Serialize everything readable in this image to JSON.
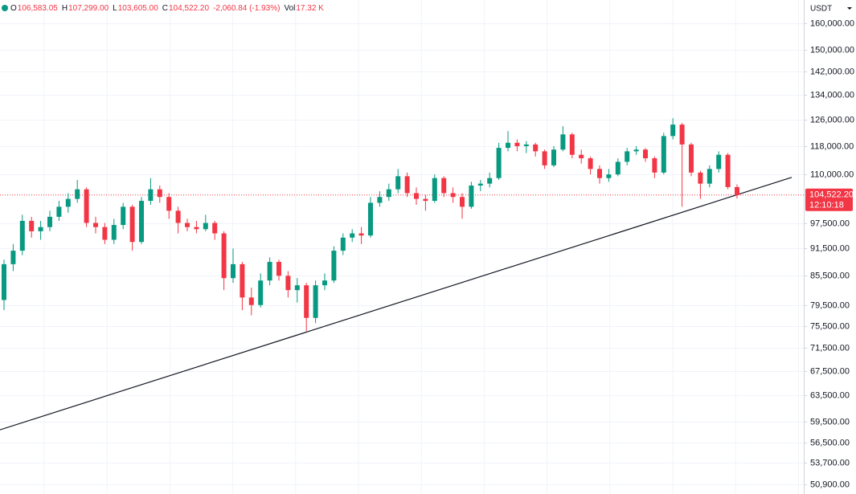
{
  "chart_data": {
    "type": "candlestick",
    "scale": "log",
    "grid": true,
    "currency": "USDT",
    "header": {
      "fields": [
        {
          "key": "O",
          "label": "106,583.05"
        },
        {
          "key": "H",
          "label": "107,299.00"
        },
        {
          "key": "L",
          "label": "103,605.00"
        },
        {
          "key": "C",
          "label": "104,522.20"
        }
      ],
      "change": "-2,060.84 (-1.93%)",
      "volume": {
        "key": "Vol",
        "label": "17.32 K"
      },
      "color": "#f23645",
      "dot_color": "#089981"
    },
    "up_color": "#089981",
    "down_color": "#f23645",
    "open": [
      80500,
      88000,
      91000,
      98000,
      95500,
      96500,
      99000,
      101500,
      103500,
      106000,
      97500,
      96500,
      93500,
      97000,
      101500,
      93000,
      103000,
      106000,
      104000,
      100500,
      97500,
      96500,
      96000,
      97500,
      95000,
      85000,
      88000,
      81000,
      79500,
      84500,
      88500,
      85500,
      82500,
      83500,
      77000,
      83500,
      84500,
      91000,
      94000,
      95000,
      94500,
      102500,
      104000,
      106000,
      109500,
      105000,
      103500,
      103000,
      109000,
      105000,
      104000,
      101500,
      107000,
      107500,
      109000,
      117500,
      119000,
      118000,
      118500,
      116500,
      112500,
      117000,
      121500,
      115500,
      114500,
      111500,
      109000,
      110000,
      113500,
      116500,
      117000,
      114500,
      110500,
      121000,
      124500,
      118500,
      110500,
      107500,
      111500,
      115500,
      106583.05
    ],
    "high": [
      89000,
      92500,
      99500,
      99000,
      98000,
      100500,
      103000,
      105000,
      108500,
      106500,
      99000,
      97500,
      98500,
      102500,
      102000,
      104000,
      109000,
      107000,
      105000,
      101500,
      98500,
      98000,
      99500,
      98000,
      95500,
      91500,
      88500,
      83000,
      86000,
      89500,
      89000,
      86500,
      85000,
      84000,
      84500,
      86000,
      92000,
      95000,
      96000,
      96500,
      104000,
      105500,
      107500,
      111500,
      110500,
      106500,
      104500,
      110000,
      109500,
      106500,
      105000,
      108000,
      108500,
      110500,
      119000,
      122500,
      120000,
      119500,
      119000,
      117000,
      118000,
      124000,
      122000,
      117000,
      115000,
      112500,
      111500,
      114500,
      117500,
      118000,
      117500,
      115000,
      122000,
      126500,
      125000,
      119000,
      111000,
      112500,
      116500,
      116000,
      107299
    ],
    "low": [
      78500,
      86500,
      90000,
      94000,
      93500,
      95500,
      98000,
      100000,
      102500,
      96500,
      95000,
      92500,
      92500,
      96000,
      91000,
      92500,
      102000,
      102500,
      98500,
      95000,
      95500,
      95000,
      95500,
      93500,
      82500,
      84000,
      78500,
      77500,
      79000,
      83500,
      84500,
      81000,
      80000,
      74500,
      76000,
      82500,
      84000,
      90000,
      93000,
      92500,
      94000,
      101500,
      103000,
      105000,
      104000,
      102000,
      100500,
      102500,
      104000,
      102500,
      98500,
      101000,
      105500,
      106500,
      108500,
      116500,
      116500,
      116000,
      115000,
      111500,
      112000,
      116500,
      114500,
      113000,
      110000,
      107500,
      108000,
      109500,
      112500,
      115500,
      113500,
      109000,
      110000,
      120000,
      101500,
      109500,
      103500,
      106500,
      110500,
      106000,
      103605
    ],
    "close": [
      88000,
      91000,
      98000,
      95500,
      96500,
      99000,
      101500,
      103500,
      106000,
      97500,
      96500,
      93500,
      97000,
      101500,
      93000,
      103000,
      106000,
      104000,
      100500,
      97500,
      96500,
      96000,
      97500,
      95000,
      85000,
      88000,
      81000,
      79500,
      84500,
      88500,
      85500,
      82500,
      83500,
      77000,
      83500,
      84500,
      91000,
      94000,
      95000,
      94500,
      102500,
      104000,
      106000,
      109500,
      105000,
      103500,
      103000,
      109000,
      105000,
      104000,
      101500,
      107000,
      107500,
      109000,
      117500,
      119000,
      118000,
      118500,
      116500,
      112500,
      117000,
      121500,
      115500,
      114500,
      111500,
      109000,
      110000,
      113500,
      116500,
      117000,
      114500,
      110500,
      121000,
      124500,
      118500,
      110500,
      107500,
      111500,
      115500,
      106583.05,
      104522.2
    ],
    "last_price_label": "104,522.20",
    "countdown": "12:10:18",
    "trendline": {
      "values": [
        58300,
        109200
      ],
      "color": "#131722"
    },
    "ylim": [
      49700,
      169700
    ],
    "yticks": [
      {
        "value": 160000,
        "label": "160,000.00"
      },
      {
        "value": 150000,
        "label": "150,000.00"
      },
      {
        "value": 142000,
        "label": "142,000.00"
      },
      {
        "value": 134000,
        "label": "134,000.00"
      },
      {
        "value": 126000,
        "label": "126,000.00"
      },
      {
        "value": 118000,
        "label": "118,000.00"
      },
      {
        "value": 110000,
        "label": "110,000.00"
      },
      {
        "value": 97500,
        "label": "97,500.00"
      },
      {
        "value": 91500,
        "label": "91,500.00"
      },
      {
        "value": 85500,
        "label": "85,500.00"
      },
      {
        "value": 79500,
        "label": "79,500.00"
      },
      {
        "value": 75500,
        "label": "75,500.00"
      },
      {
        "value": 71500,
        "label": "71,500.00"
      },
      {
        "value": 67500,
        "label": "67,500.00"
      },
      {
        "value": 63500,
        "label": "63,500.00"
      },
      {
        "value": 59500,
        "label": "59,500.00"
      },
      {
        "value": 56500,
        "label": "56,500.00"
      },
      {
        "value": 53700,
        "label": "53,700.00"
      },
      {
        "value": 50900,
        "label": "50,900.00"
      }
    ]
  }
}
